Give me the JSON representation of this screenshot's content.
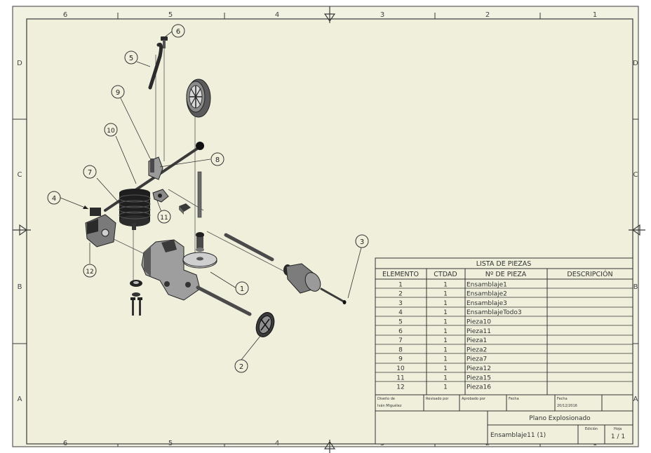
{
  "colors": {
    "paper": "#efefdc",
    "sheet_outer": "#f2f2e2",
    "line": "#3a3a3a",
    "part_dark": "#2b2b2b",
    "part_mid": "#6e6e6e",
    "part_light": "#bdbdbd"
  },
  "zones": {
    "top": [
      "6",
      "5",
      "4",
      "3",
      "2",
      "1"
    ],
    "bottom": [
      "6",
      "5",
      "4",
      "3",
      "2",
      "1"
    ],
    "left": [
      "D",
      "C",
      "B",
      "A"
    ],
    "right": [
      "D",
      "C",
      "B",
      "A"
    ]
  },
  "balloons": [
    {
      "n": "1"
    },
    {
      "n": "2"
    },
    {
      "n": "3"
    },
    {
      "n": "4"
    },
    {
      "n": "5"
    },
    {
      "n": "6"
    },
    {
      "n": "7"
    },
    {
      "n": "8"
    },
    {
      "n": "9"
    },
    {
      "n": "10"
    },
    {
      "n": "11"
    },
    {
      "n": "12"
    }
  ],
  "parts_list": {
    "title": "LISTA DE PIEZAS",
    "headers": [
      "ELEMENTO",
      "CTDAD",
      "Nº DE PIEZA",
      "DESCRIPCIÓN"
    ],
    "rows": [
      [
        "1",
        "1",
        "Ensamblaje1",
        ""
      ],
      [
        "2",
        "1",
        "Ensamblaje2",
        ""
      ],
      [
        "3",
        "1",
        "Ensamblaje3",
        ""
      ],
      [
        "4",
        "1",
        "EnsamblajeTodo3",
        ""
      ],
      [
        "5",
        "1",
        "Pieza10",
        ""
      ],
      [
        "6",
        "1",
        "Pieza11",
        ""
      ],
      [
        "7",
        "1",
        "Pieza1",
        ""
      ],
      [
        "8",
        "1",
        "Pieza2",
        ""
      ],
      [
        "9",
        "1",
        "Pieza7",
        ""
      ],
      [
        "10",
        "1",
        "Pieza12",
        ""
      ],
      [
        "11",
        "1",
        "Pieza15",
        ""
      ],
      [
        "12",
        "1",
        "Pieza16",
        ""
      ]
    ]
  },
  "title_block": {
    "designed_label": "Diseño de",
    "designed_value": "Iván Miguélez",
    "checked_label": "Revisado por",
    "approved_label": "Aprobado por",
    "date1_label": "Fecha",
    "date2_label": "Fecha",
    "date2_value": "20/12/2016",
    "drawing_title": "Plano Explosionado",
    "file_name": "Ensamblaje11 (1)",
    "edition_label": "Edición",
    "sheet_label": "Hoja",
    "sheet_value": "1 / 1"
  }
}
